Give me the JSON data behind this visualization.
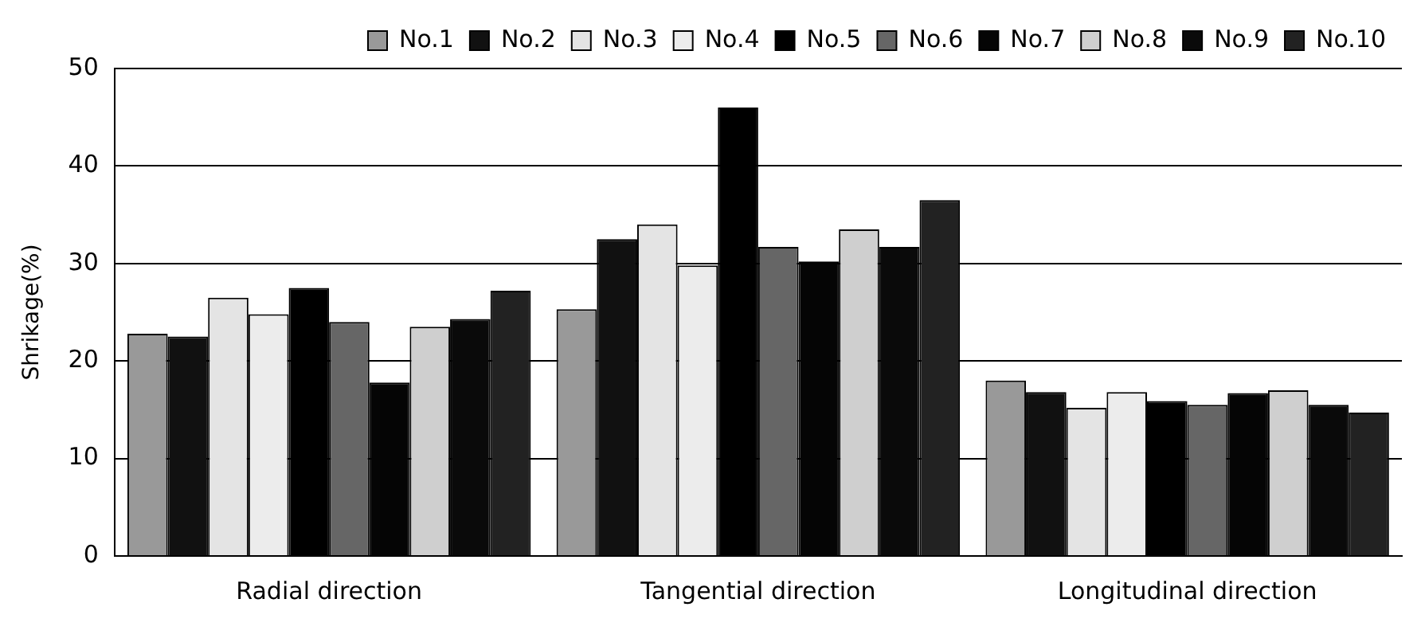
{
  "chart_data": {
    "type": "bar",
    "ylabel": "Shrikage(%)",
    "categories": [
      "Radial direction",
      "Tangential direction",
      "Longitudinal direction"
    ],
    "series": [
      {
        "name": "No.1",
        "color": "#999999",
        "values": [
          22.8,
          25.3,
          18
        ]
      },
      {
        "name": "No.2",
        "color": "#111111",
        "values": [
          22.5,
          32.5,
          16.8
        ]
      },
      {
        "name": "No.3",
        "color": "#e4e4e4",
        "values": [
          26.5,
          34,
          15.2
        ]
      },
      {
        "name": "No.4",
        "color": "#ececec",
        "values": [
          24.8,
          29.8,
          16.8
        ]
      },
      {
        "name": "No.5",
        "color": "#000000",
        "values": [
          27.5,
          46,
          15.9
        ]
      },
      {
        "name": "No.6",
        "color": "#666666",
        "values": [
          24,
          31.7,
          15.5
        ]
      },
      {
        "name": "No.7",
        "color": "#050505",
        "values": [
          17.8,
          30.2,
          16.7
        ]
      },
      {
        "name": "No.8",
        "color": "#cfcfcf",
        "values": [
          23.5,
          33.5,
          17
        ]
      },
      {
        "name": "No.9",
        "color": "#0a0a0a",
        "values": [
          24.3,
          31.7,
          15.5
        ]
      },
      {
        "name": "No.10",
        "color": "#222222",
        "values": [
          27.2,
          36.5,
          14.7
        ]
      }
    ],
    "ylim": [
      0,
      50
    ],
    "yticks": [
      0,
      10,
      20,
      30,
      40,
      50
    ],
    "grid": "y",
    "legend": "top right"
  }
}
